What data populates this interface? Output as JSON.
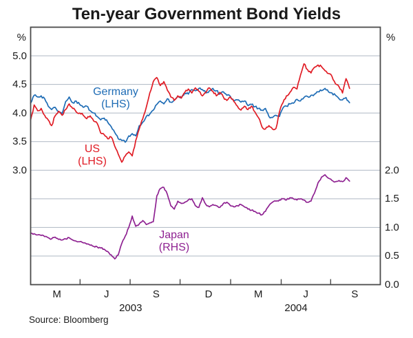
{
  "chart_data": {
    "type": "line",
    "title": "Ten-year Government Bond Yields",
    "source": "Source: Bloomberg",
    "legend_position": "inline-annotations",
    "grid": true,
    "left_axis": {
      "unit": "%",
      "tick_labels": [
        "5.0",
        "4.5",
        "4.0",
        "3.5",
        "3.0"
      ],
      "tick_values": [
        5.0,
        4.5,
        4.0,
        3.5,
        3.0
      ],
      "range": [
        1.0,
        5.5
      ]
    },
    "right_axis": {
      "unit": "%",
      "tick_labels": [
        "2.0",
        "1.5",
        "1.0",
        "0.5",
        "0.0"
      ],
      "tick_values": [
        2.0,
        1.5,
        1.0,
        0.5,
        0.0
      ],
      "range": [
        0.0,
        4.5
      ]
    },
    "x_axis": {
      "month_labels": [
        {
          "label": "M",
          "pos": 0.075
        },
        {
          "label": "J",
          "pos": 0.217
        },
        {
          "label": "S",
          "pos": 0.359
        },
        {
          "label": "D",
          "pos": 0.509
        },
        {
          "label": "M",
          "pos": 0.651
        },
        {
          "label": "J",
          "pos": 0.787
        },
        {
          "label": "S",
          "pos": 0.927
        }
      ],
      "year_labels": [
        {
          "label": "2003",
          "pos": 0.286
        },
        {
          "label": "2004",
          "pos": 0.759
        }
      ],
      "tick_positions": [
        0.1414,
        0.2846,
        0.4274,
        0.572,
        0.7166,
        0.858
      ]
    },
    "gridline_values_right": [
      0.5,
      1.0,
      1.5,
      2.0,
      2.5,
      3.0,
      3.5,
      4.0
    ],
    "colors": {
      "germany": "#1e6cb5",
      "us": "#e01b24",
      "japan": "#8e2191",
      "grid": "#b7bfca",
      "frame": "#4a4a4a",
      "text": "#1a1a1a"
    },
    "series": [
      {
        "name": "Germany",
        "axis": "left",
        "color_key": "germany",
        "label_line1": "Germany",
        "label_line2": "(LHS)",
        "x_start": 0.0,
        "x_end": 0.912,
        "values": [
          4.17,
          4.31,
          4.28,
          4.3,
          4.25,
          4.12,
          4.06,
          4.1,
          4.03,
          3.99,
          4.2,
          4.28,
          4.18,
          4.21,
          4.15,
          4.1,
          4.12,
          4.04,
          4.0,
          3.94,
          3.88,
          3.91,
          3.84,
          3.76,
          3.66,
          3.55,
          3.52,
          3.49,
          3.6,
          3.64,
          3.6,
          3.78,
          3.84,
          3.94,
          3.98,
          4.05,
          4.15,
          4.21,
          4.16,
          4.25,
          4.19,
          4.23,
          4.29,
          4.27,
          4.35,
          4.33,
          4.41,
          4.39,
          4.43,
          4.41,
          4.35,
          4.39,
          4.43,
          4.39,
          4.33,
          4.37,
          4.31,
          4.29,
          4.21,
          4.23,
          4.19,
          4.21,
          4.13,
          4.15,
          4.11,
          4.08,
          4.05,
          4.08,
          3.94,
          3.92,
          3.96,
          3.94,
          4.09,
          4.12,
          4.16,
          4.17,
          4.24,
          4.21,
          4.27,
          4.29,
          4.31,
          4.33,
          4.37,
          4.39,
          4.43,
          4.37,
          4.35,
          4.31,
          4.25,
          4.23,
          4.27,
          4.18
        ]
      },
      {
        "name": "US",
        "axis": "left",
        "color_key": "us",
        "label_line1": "US",
        "label_line2": "(LHS)",
        "x_start": 0.0,
        "x_end": 0.912,
        "values": [
          3.88,
          4.14,
          4.04,
          4.08,
          3.96,
          3.88,
          3.78,
          3.95,
          4.03,
          3.96,
          4.06,
          4.16,
          4.08,
          4.02,
          4.0,
          3.96,
          3.9,
          3.95,
          3.86,
          3.82,
          3.65,
          3.62,
          3.55,
          3.58,
          3.42,
          3.28,
          3.14,
          3.25,
          3.32,
          3.25,
          3.52,
          3.72,
          3.9,
          4.1,
          4.35,
          4.55,
          4.62,
          4.48,
          4.55,
          4.4,
          4.28,
          4.22,
          4.3,
          4.26,
          4.36,
          4.42,
          4.35,
          4.44,
          4.38,
          4.3,
          4.36,
          4.44,
          4.38,
          4.3,
          4.36,
          4.28,
          4.22,
          4.28,
          4.2,
          4.12,
          4.05,
          4.12,
          4.06,
          4.12,
          4.02,
          3.92,
          3.76,
          3.72,
          3.78,
          3.72,
          3.73,
          4.02,
          4.18,
          4.3,
          4.36,
          4.45,
          4.42,
          4.66,
          4.86,
          4.76,
          4.7,
          4.8,
          4.84,
          4.81,
          4.74,
          4.69,
          4.64,
          4.51,
          4.46,
          4.35,
          4.6,
          4.43
        ]
      },
      {
        "name": "Japan",
        "axis": "right",
        "color_key": "japan",
        "label_line1": "Japan",
        "label_line2": "(RHS)",
        "x_start": 0.0,
        "x_end": 0.912,
        "values": [
          0.9,
          0.89,
          0.87,
          0.86,
          0.84,
          0.82,
          0.8,
          0.83,
          0.79,
          0.78,
          0.8,
          0.82,
          0.78,
          0.76,
          0.75,
          0.73,
          0.71,
          0.69,
          0.67,
          0.66,
          0.64,
          0.62,
          0.58,
          0.52,
          0.45,
          0.52,
          0.72,
          0.85,
          1.0,
          1.2,
          1.02,
          1.06,
          1.12,
          1.05,
          1.08,
          1.1,
          1.55,
          1.68,
          1.7,
          1.58,
          1.38,
          1.32,
          1.46,
          1.42,
          1.44,
          1.48,
          1.5,
          1.38,
          1.35,
          1.52,
          1.4,
          1.36,
          1.4,
          1.38,
          1.35,
          1.42,
          1.44,
          1.38,
          1.36,
          1.38,
          1.4,
          1.36,
          1.32,
          1.3,
          1.28,
          1.25,
          1.22,
          1.28,
          1.38,
          1.44,
          1.46,
          1.48,
          1.5,
          1.48,
          1.52,
          1.5,
          1.48,
          1.5,
          1.48,
          1.44,
          1.46,
          1.6,
          1.78,
          1.88,
          1.92,
          1.86,
          1.82,
          1.8,
          1.82,
          1.8,
          1.87,
          1.81
        ]
      }
    ]
  }
}
